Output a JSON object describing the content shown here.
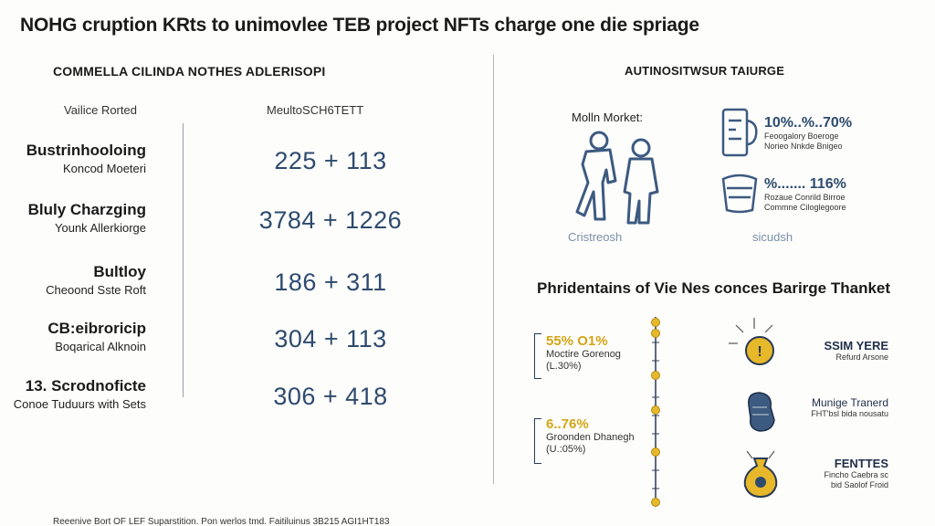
{
  "title": "NOHG cruption KRts to unimovlee TEB project NFTs charge one die spriage",
  "left": {
    "subtitle": "COMMELLA CILINDA NOTHES ADLERISOPI",
    "col1_header": "Vailice Rorted",
    "col2_header": "MeultoSCH6TETT",
    "rows": [
      {
        "name": "Bustrinhooloing",
        "sub": "Koncod Moeteri",
        "value": "225 + 113"
      },
      {
        "name": "Bluly Charzging",
        "sub": "Younk Allerkiorge",
        "value": "3784 + 1226"
      },
      {
        "name": "Bultloy",
        "sub": "Cheoond Sste Roft",
        "value": "186 + 311"
      },
      {
        "name": "CB:eibroricip",
        "sub": "Boqarical Alknoin",
        "value": "304 + 113"
      },
      {
        "name": "13. Scrodnoficte",
        "sub": "Conoe Tuduurs with Sets",
        "value": "306 + 418"
      }
    ]
  },
  "right_top": {
    "title": "AUTINOSITWSUR TAIURGE",
    "market_label": "Molln Morket:",
    "caption_left": "Cristreosh",
    "caption_right": "sicudsh",
    "stats": [
      {
        "pct": "10%..%..70%",
        "line1": "Feoogalory Boeroge",
        "line2": "Norieo Nnkde Bnigeo"
      },
      {
        "pct": "%....... 116%",
        "line1": "Rozaue Conrild Birroe",
        "line2": "Commne Ciloglegoore"
      }
    ]
  },
  "right_bottom": {
    "title": "Phridentains of Vie Nes conces Barirge Thanket",
    "stats": [
      {
        "pct": "55% O1%",
        "line1": "Moctire Gorenog",
        "line2": "(L.30%)"
      },
      {
        "pct": "6..76%",
        "line1": "Groonden Dhanegh",
        "line2": "(U.:05%)"
      }
    ],
    "features": [
      {
        "heading": "SSIM YERE",
        "line1": "Refurd Arsone",
        "line2": ""
      },
      {
        "heading": "Munige Tranerd",
        "line1": "FHT'bsl bida nousatu",
        "line2": ""
      },
      {
        "heading": "FENTTES",
        "line1": "Fincho Caebra sc",
        "line2": "bid Saolof Froid"
      }
    ]
  },
  "footer": "Reeenive Bort OF LEF Suparstition. Pon werlos tmd. Faitiluinus 3B215 AGI1HT183",
  "colors": {
    "navy": "#2e4b6e",
    "gold": "#e6b82a",
    "light_blue": "#7a90a6"
  }
}
